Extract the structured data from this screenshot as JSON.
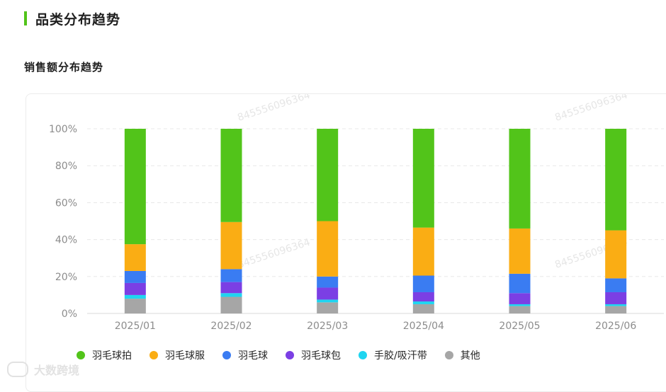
{
  "header": {
    "title": "品类分布趋势"
  },
  "section": {
    "subtitle": "销售额分布趋势"
  },
  "watermark": "845556096364",
  "brand": "大数跨境",
  "chart_data": {
    "type": "bar",
    "stacked": true,
    "title": "",
    "xlabel": "",
    "ylabel": "",
    "ylim": [
      0,
      100
    ],
    "yticks": [
      "0%",
      "20%",
      "40%",
      "60%",
      "80%",
      "100%"
    ],
    "categories": [
      "2025/01",
      "2025/02",
      "2025/03",
      "2025/04",
      "2025/05",
      "2025/06"
    ],
    "grid": true,
    "legend_position": "bottom",
    "series": [
      {
        "name": "其他",
        "color": "#a6a6a6",
        "values": [
          8,
          9,
          6,
          5,
          4,
          4
        ]
      },
      {
        "name": "手胶/吸汗带",
        "color": "#1fd5f0",
        "values": [
          2,
          2,
          1.5,
          1.5,
          1,
          1
        ]
      },
      {
        "name": "羽毛球包",
        "color": "#7b3fe4",
        "values": [
          6.5,
          6,
          6.5,
          5,
          6,
          6.5
        ]
      },
      {
        "name": "羽毛球",
        "color": "#3a7cf2",
        "values": [
          6.5,
          7,
          6,
          9,
          10.5,
          7.5
        ]
      },
      {
        "name": "羽毛球服",
        "color": "#faad14",
        "values": [
          14.5,
          25.5,
          30,
          26,
          24.5,
          26
        ]
      },
      {
        "name": "羽毛球拍",
        "color": "#52c41a",
        "values": [
          62.5,
          50.5,
          50,
          53.5,
          54,
          55
        ]
      }
    ]
  }
}
